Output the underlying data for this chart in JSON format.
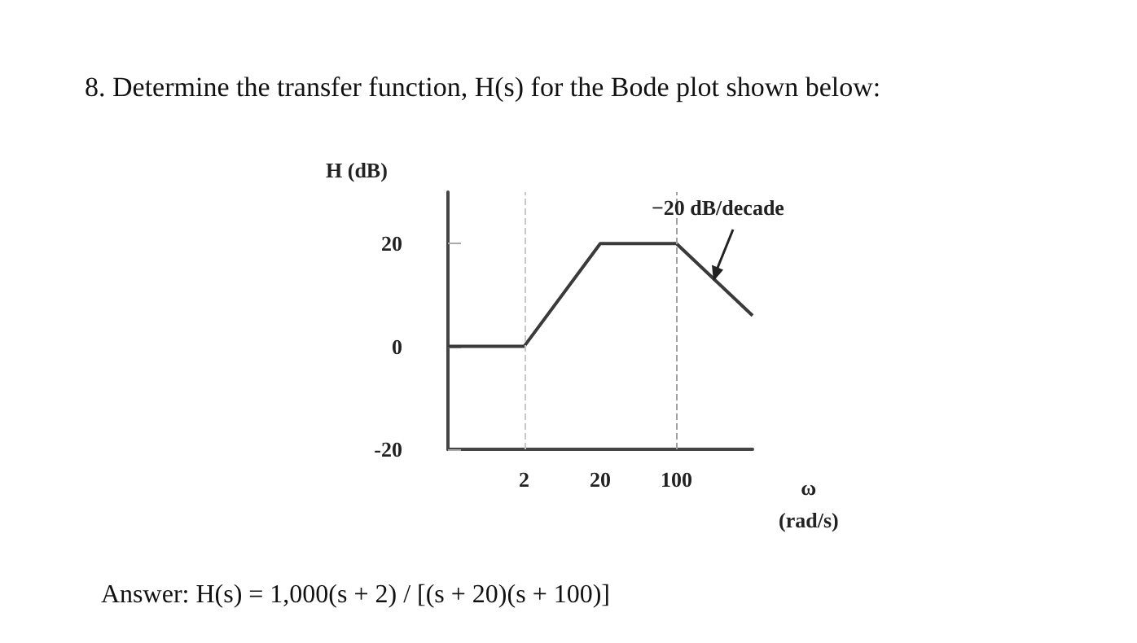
{
  "chart_data": {
    "type": "line",
    "title": "8. Determine the transfer function, H(s) for the Bode plot shown below:",
    "xlabel": "ω (rad/s)",
    "ylabel": "H (dB)",
    "categories": [
      null,
      "2",
      "20",
      "100",
      null
    ],
    "series": [
      {
        "color": "#3a3a3a",
        "values": [
          0,
          0,
          20,
          20,
          6
        ]
      }
    ],
    "ylim": [
      -20,
      30
    ],
    "yticks": [
      -20,
      0,
      20
    ],
    "ref_lines": [
      {
        "axis": "x",
        "value": "2",
        "color": "#c8c8c8",
        "line_style": "dashed"
      },
      {
        "axis": "x",
        "value": "100",
        "color": "#a0a0a0",
        "line_style": "dashed"
      }
    ],
    "annotations": [
      "−20 dB/decade",
      "Answer: H(s) = 1,000(s + 2) / [(s + 20)(s + 100)]"
    ],
    "grid": false,
    "marker": "none",
    "line_style": "solid"
  }
}
